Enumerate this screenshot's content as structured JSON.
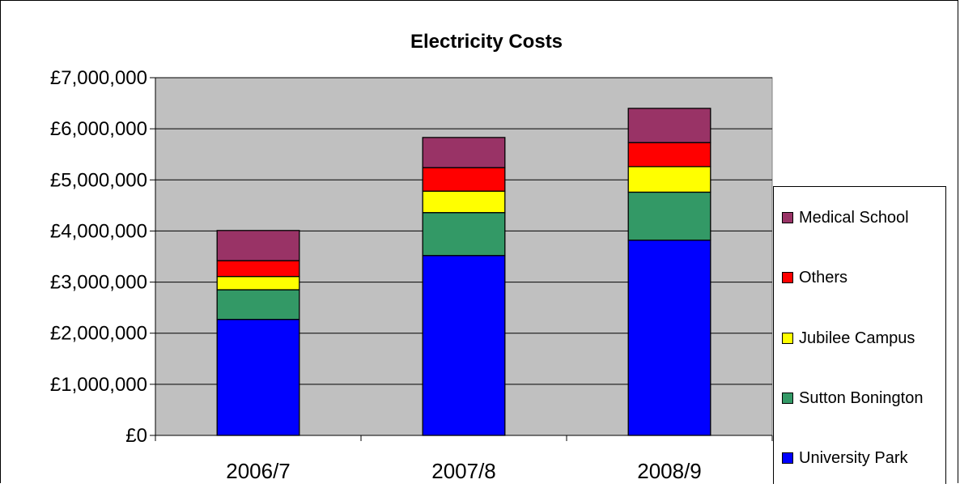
{
  "chart_data": {
    "type": "bar",
    "stacked": true,
    "title": "Electricity Costs",
    "xlabel": "",
    "ylabel": "",
    "categories": [
      "2006/7",
      "2007/8",
      "2008/9"
    ],
    "ylim": [
      0,
      7000000
    ],
    "yticks": [
      0,
      1000000,
      2000000,
      3000000,
      4000000,
      5000000,
      6000000,
      7000000
    ],
    "ytick_labels": [
      "£0",
      "£1,000,000",
      "£2,000,000",
      "£3,000,000",
      "£4,000,000",
      "£5,000,000",
      "£6,000,000",
      "£7,000,000"
    ],
    "grid": true,
    "legend_position": "right",
    "plot_background": "#c0c0c0",
    "series": [
      {
        "name": "University Park",
        "color": "#0000ff",
        "values": [
          2270000,
          3520000,
          3820000
        ]
      },
      {
        "name": "Sutton Bonington",
        "color": "#339966",
        "values": [
          580000,
          840000,
          940000
        ]
      },
      {
        "name": "Jubilee Campus",
        "color": "#ffff00",
        "values": [
          260000,
          420000,
          500000
        ]
      },
      {
        "name": "Others",
        "color": "#ff0000",
        "values": [
          310000,
          460000,
          470000
        ]
      },
      {
        "name": "Medical School",
        "color": "#993366",
        "values": [
          590000,
          590000,
          670000
        ]
      }
    ]
  }
}
